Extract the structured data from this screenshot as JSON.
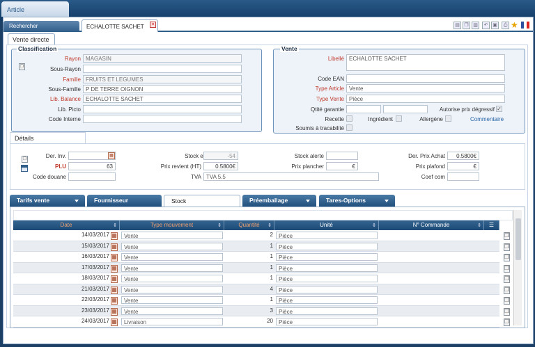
{
  "window": {
    "tab_label": "Article"
  },
  "tabs": {
    "search": "Rechercher",
    "document": "ECHALOTTE SACHET"
  },
  "subtab": "Vente directe",
  "classification": {
    "legend": "Classification",
    "rayon_label": "Rayon",
    "rayon_value": "MAGASIN",
    "sous_rayon_label": "Sous-Rayon",
    "sous_rayon_value": "",
    "famille_label": "Famille",
    "famille_value": "FRUITS ET LEGUMES",
    "sous_famille_label": "Sous-Famille",
    "sous_famille_value": "P DE TERRE OIGNON",
    "lib_balance_label": "Lib. Balance",
    "lib_balance_value": "ECHALOTTE SACHET",
    "lib_picto_label": "Lib. Picto",
    "lib_picto_value": "",
    "code_interne_label": "Code Interne",
    "code_interne_value": ""
  },
  "vente": {
    "legend": "Vente",
    "libelle_label": "Libellé",
    "libelle_value": "ECHALOTTE SACHET",
    "code_ean_label": "Code EAN",
    "code_ean_value": "",
    "type_article_label": "Type Article",
    "type_article_value": "Vente",
    "type_vente_label": "Type Vente",
    "type_vente_value": "Pièce",
    "qtite_garantie_label": "Qtité garantie",
    "autorise_label": "Autorise prix dégressif",
    "recette_label": "Recette",
    "ingredient_label": "Ingrédient",
    "allergene_label": "Allergène",
    "commentaire_link": "Commentaire",
    "tracabilite_label": "Soumis à tracabilité"
  },
  "details": {
    "tab": "Détails",
    "der_inv_label": "Der. Inv.",
    "plu_label": "PLU",
    "plu_value": "63",
    "code_douane_label": "Code douane",
    "stock_cours_label": "Stock en cours",
    "stock_cours_value": "-54",
    "prix_revient_label": "Prix revient (HT)",
    "prix_revient_value": "0.5800€",
    "tva_label": "TVA",
    "tva_value": "TVA 5.5",
    "stock_alerte_label": "Stock alerte",
    "prix_plancher_label": "Prix plancher",
    "prix_plancher_value": "€",
    "der_prix_achat_label": "Der. Prix Achat",
    "der_prix_achat_value": "0.5800€",
    "prix_plafond_label": "Prix plafond",
    "prix_plafond_value": "€",
    "coef_com_label": "Coef com"
  },
  "bottom_tabs": [
    "Tarifs vente",
    "Fournisseur",
    "Stock",
    "Préemballage",
    "Tares-Options"
  ],
  "grid": {
    "headers": [
      "Date",
      "Type mouvement",
      "Quantité",
      "Unité",
      "N° Commande"
    ],
    "rows": [
      {
        "date": "14/03/2017",
        "type": "Vente",
        "qty": "2",
        "unit": "Pièce"
      },
      {
        "date": "15/03/2017",
        "type": "Vente",
        "qty": "1",
        "unit": "Pièce"
      },
      {
        "date": "16/03/2017",
        "type": "Vente",
        "qty": "1",
        "unit": "Pièce"
      },
      {
        "date": "17/03/2017",
        "type": "Vente",
        "qty": "1",
        "unit": "Pièce"
      },
      {
        "date": "18/03/2017",
        "type": "Vente",
        "qty": "1",
        "unit": "Pièce"
      },
      {
        "date": "21/03/2017",
        "type": "Vente",
        "qty": "4",
        "unit": "Pièce"
      },
      {
        "date": "22/03/2017",
        "type": "Vente",
        "qty": "1",
        "unit": "Pièce"
      },
      {
        "date": "23/03/2017",
        "type": "Vente",
        "qty": "3",
        "unit": "Pièce"
      },
      {
        "date": "24/03/2017",
        "type": "Livraison",
        "qty": "20",
        "unit": "Pièce"
      }
    ]
  },
  "colors": {
    "accent": "#1d4a76",
    "required": "#c0392b",
    "header_text": "#f0a070"
  }
}
